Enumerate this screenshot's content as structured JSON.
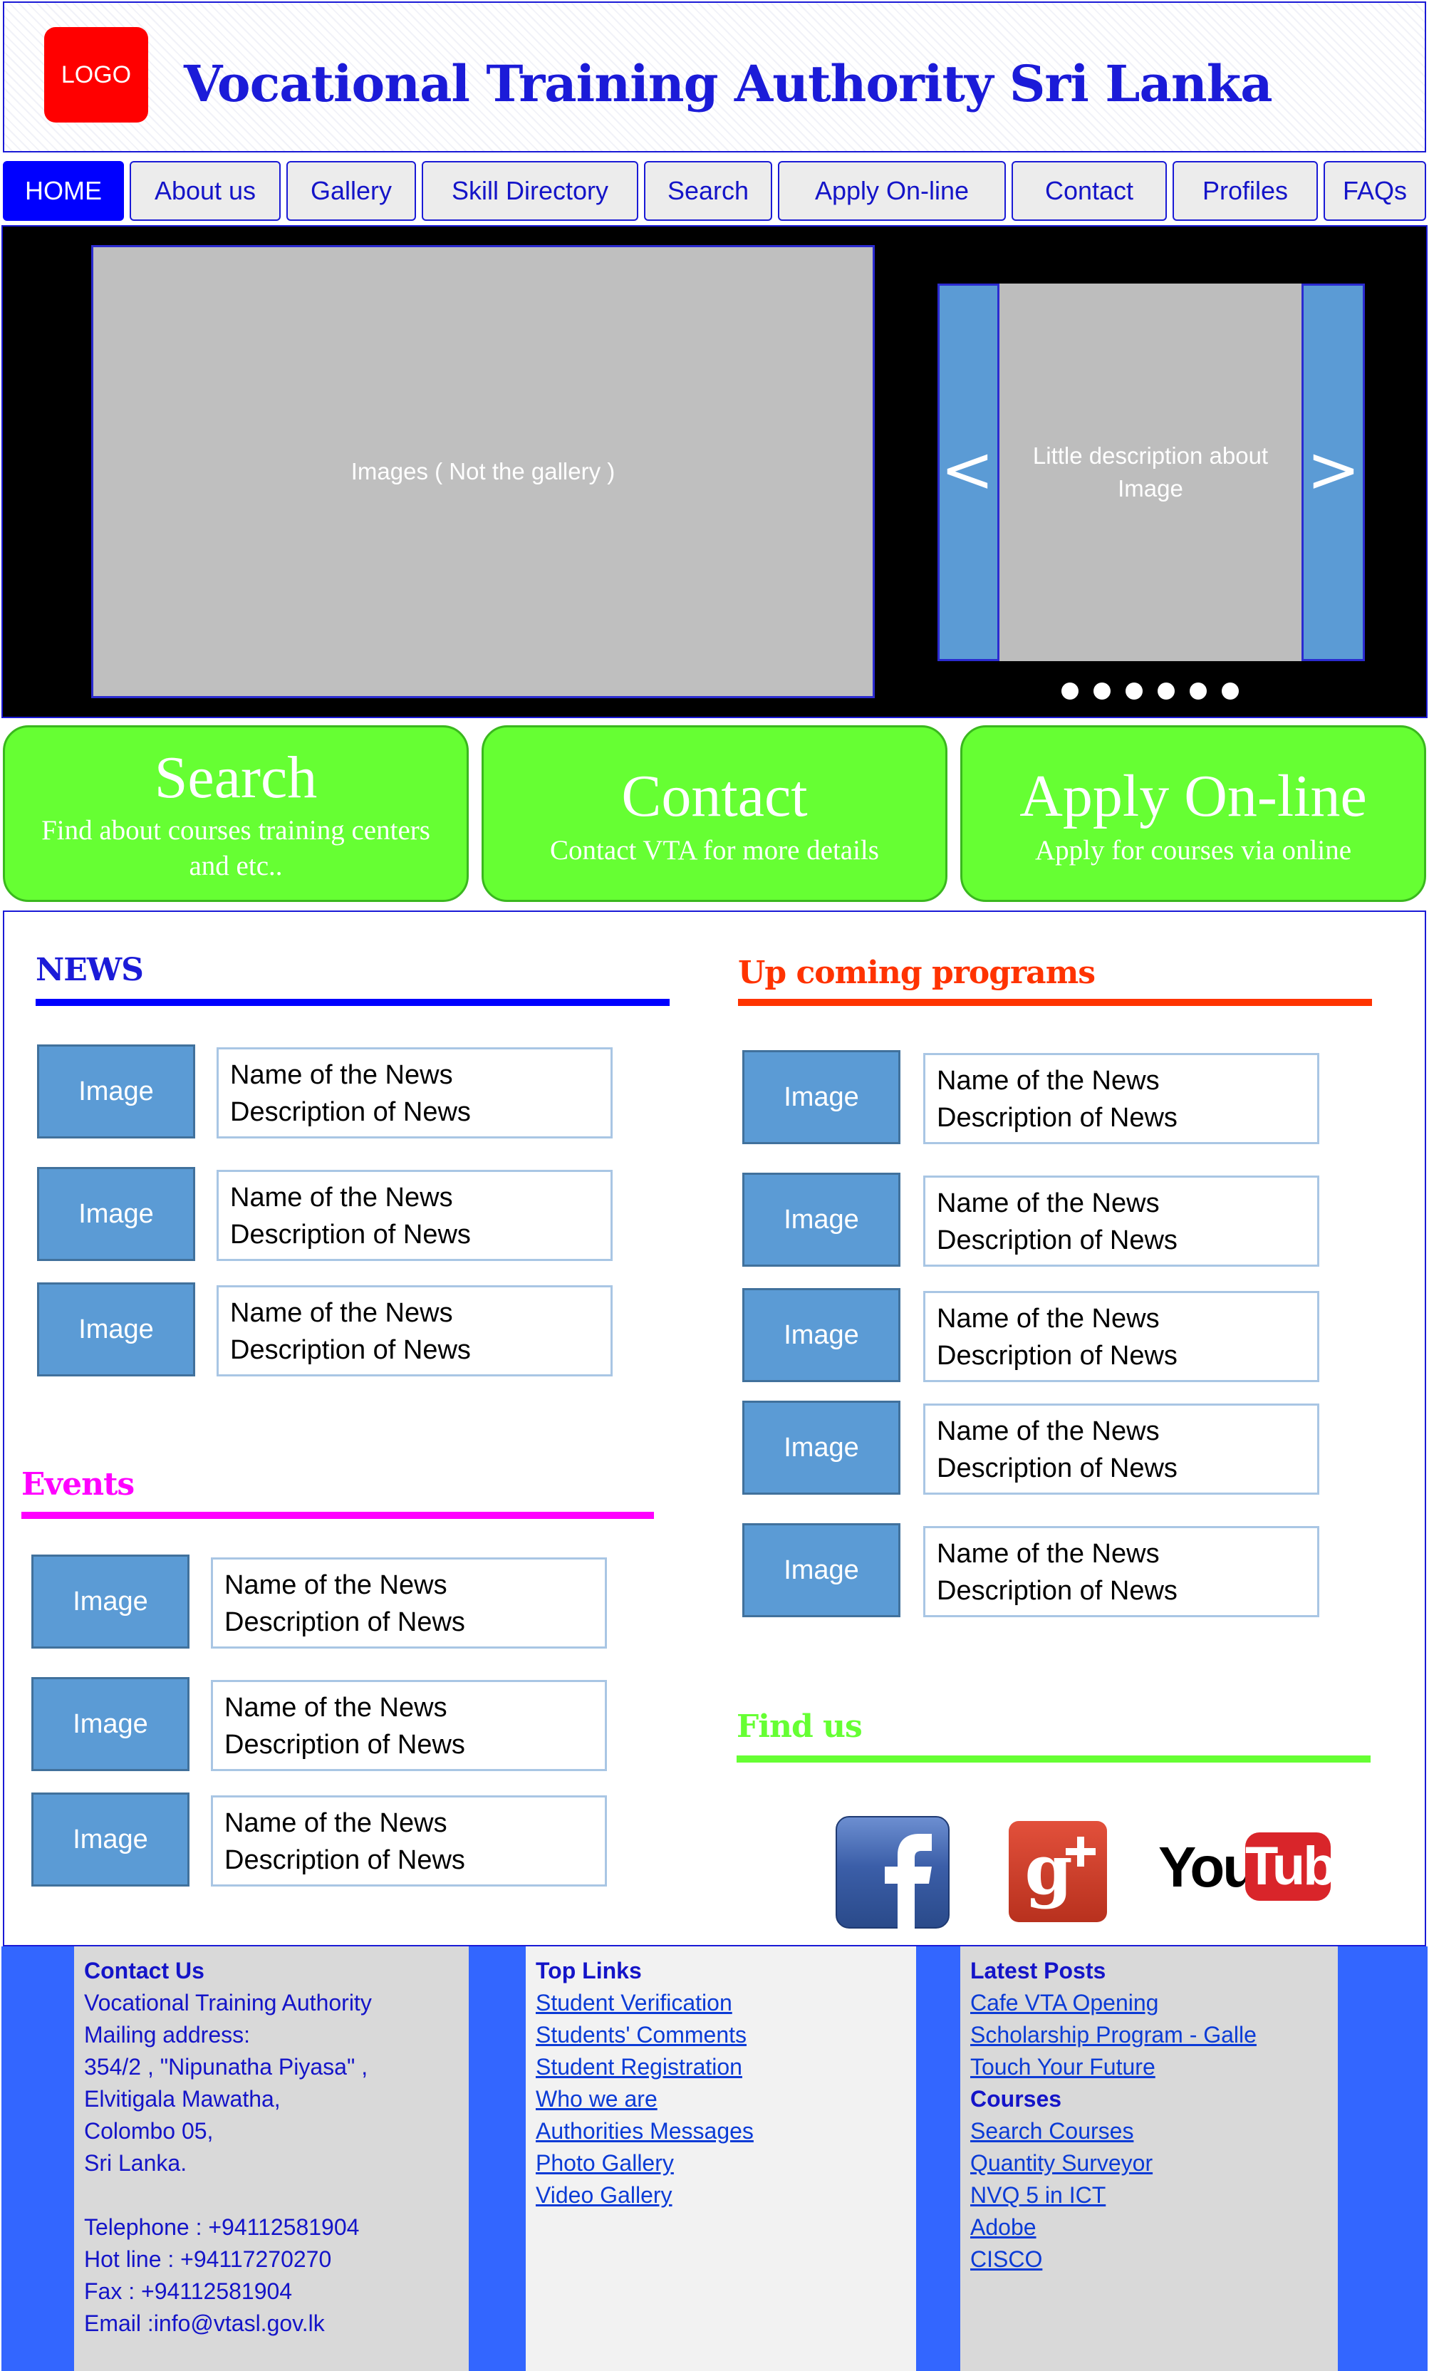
{
  "header": {
    "logo_text": "LOGO",
    "title": "Vocational Training Authority Sri Lanka"
  },
  "nav": {
    "items": [
      "HOME",
      "About us",
      "Gallery",
      "Skill Directory",
      "Search",
      "Apply On-line",
      "Contact",
      "Profiles",
      "FAQs"
    ],
    "active": "HOME"
  },
  "hero": {
    "image_label": "Images ( Not the gallery )",
    "slider_description": "Little description about Image",
    "prev_arrow": "<",
    "next_arrow": ">",
    "dot_count": 6
  },
  "cta": [
    {
      "title": "Search",
      "description": "Find about courses training centers and etc.."
    },
    {
      "title": "Contact",
      "description": "Contact VTA for more details"
    },
    {
      "title": "Apply On-line",
      "description": "Apply for courses via online"
    }
  ],
  "news": {
    "title": "NEWS",
    "items": [
      {
        "image": "Image",
        "name": "Name of the News",
        "description": "Description of News"
      },
      {
        "image": "Image",
        "name": "Name of the News",
        "description": "Description of News"
      },
      {
        "image": "Image",
        "name": "Name of the News",
        "description": "Description of News"
      }
    ]
  },
  "upcoming": {
    "title": "Up coming programs",
    "items": [
      {
        "image": "Image",
        "name": "Name of the News",
        "description": "Description of News"
      },
      {
        "image": "Image",
        "name": "Name of the News",
        "description": "Description of News"
      },
      {
        "image": "Image",
        "name": "Name of the News",
        "description": "Description of News"
      },
      {
        "image": "Image",
        "name": "Name of the News",
        "description": "Description of News"
      },
      {
        "image": "Image",
        "name": "Name of the News",
        "description": "Description of News"
      }
    ]
  },
  "events": {
    "title": "Events",
    "items": [
      {
        "image": "Image",
        "name": "Name of the News",
        "description": "Description of News"
      },
      {
        "image": "Image",
        "name": "Name of the News",
        "description": "Description of News"
      },
      {
        "image": "Image",
        "name": "Name of the News",
        "description": "Description of News"
      }
    ]
  },
  "find_us": {
    "title": "Find us",
    "youtube_you": "You",
    "youtube_tube": "Tube",
    "gplus_text": "g+"
  },
  "footer": {
    "contact": {
      "heading": "Contact Us",
      "lines": [
        "Vocational Training Authority",
        "Mailing address:",
        "354/2 , \"Nipunatha Piyasa\" ,",
        "Elvitigala Mawatha,",
        "Colombo 05,",
        "Sri Lanka.",
        "",
        "Telephone : +94112581904",
        "Hot line : +94117270270",
        "Fax : +94112581904",
        "Email :info@vtasl.gov.lk"
      ]
    },
    "top_links": {
      "heading": "Top Links",
      "links": [
        "Student Verification",
        "Students' Comments",
        "Student Registration",
        "Who we are",
        "Authorities Messages",
        "Photo Gallery",
        "Video Gallery"
      ]
    },
    "latest_posts": {
      "heading": "Latest Posts",
      "links": [
        "Cafe VTA Opening",
        "Scholarship Program - Galle",
        "Touch Your Future"
      ]
    },
    "courses": {
      "heading": "Courses",
      "links": [
        "Search Courses",
        "Quantity Surveyor",
        "NVQ 5 in ICT",
        "Adobe",
        "CISCO"
      ]
    }
  },
  "colors": {
    "brand_blue": "#1b1bd8",
    "news_rule": "#0000ff",
    "upcoming": "#ff3300",
    "events": "#ff00ff",
    "find_us": "#66ff33",
    "cta_green": "#66ff33",
    "image_box": "#5b9bd5",
    "footer_blue": "#3366ff"
  }
}
